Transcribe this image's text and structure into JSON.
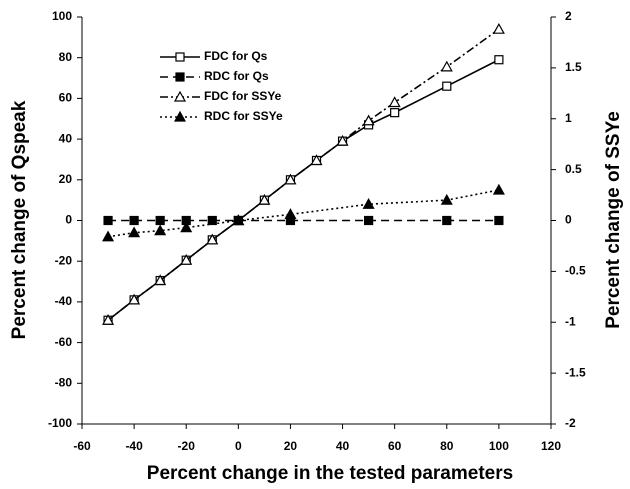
{
  "chart_data": {
    "type": "line",
    "x_label": "Percent change in the tested parameters",
    "y_label": "Percent change of Qspeak",
    "y2_label": "Percent change of SSYe",
    "xlim": [
      -60,
      120
    ],
    "xticks": [
      -60,
      -40,
      -20,
      0,
      20,
      40,
      60,
      80,
      100,
      120
    ],
    "ylim": [
      -100,
      100
    ],
    "yticks": [
      -100,
      -80,
      -60,
      -40,
      -20,
      0,
      20,
      40,
      60,
      80,
      100
    ],
    "y2lim": [
      -2,
      2
    ],
    "y2ticks": [
      -2,
      -1.5,
      -1,
      -0.5,
      0,
      0.5,
      1,
      1.5,
      2
    ],
    "legend": "upper-left",
    "series": [
      {
        "name": "FDC for Qs",
        "color": "#000000",
        "line_style": "solid",
        "marker": "square-open",
        "x": [
          -50,
          -40,
          -30,
          -20,
          -10,
          0,
          10,
          20,
          30,
          40,
          50,
          60,
          80,
          100
        ],
        "values": [
          -49,
          -39,
          -29.5,
          -19.5,
          -9.5,
          0,
          10,
          20,
          29.5,
          39,
          47,
          53,
          66,
          79
        ]
      },
      {
        "name": "RDC for Qs",
        "color": "#000000",
        "line_style": "dashed",
        "marker": "square-filled",
        "x": [
          -50,
          -40,
          -30,
          -20,
          -10,
          0,
          20,
          50,
          80,
          100
        ],
        "values": [
          0,
          0,
          0,
          0,
          0,
          0,
          0,
          0,
          0,
          0
        ]
      },
      {
        "name": "FDC for SSYe",
        "color": "#000000",
        "line_style": "dashdot",
        "marker": "triangle-open",
        "axis": "y2",
        "x": [
          -50,
          -40,
          -30,
          -20,
          -10,
          0,
          10,
          20,
          30,
          40,
          50,
          60,
          80,
          100
        ],
        "values": [
          -0.98,
          -0.78,
          -0.59,
          -0.39,
          -0.19,
          0,
          0.2,
          0.4,
          0.59,
          0.78,
          0.98,
          1.16,
          1.51,
          1.88
        ]
      },
      {
        "name": "RDC for SSYe",
        "color": "#000000",
        "line_style": "dotted",
        "marker": "triangle-filled",
        "axis": "y2",
        "x": [
          -50,
          -40,
          -30,
          -20,
          0,
          20,
          50,
          80,
          100
        ],
        "values": [
          -0.16,
          -0.12,
          -0.1,
          -0.07,
          0,
          0.06,
          0.16,
          0.2,
          0.3
        ]
      }
    ]
  }
}
